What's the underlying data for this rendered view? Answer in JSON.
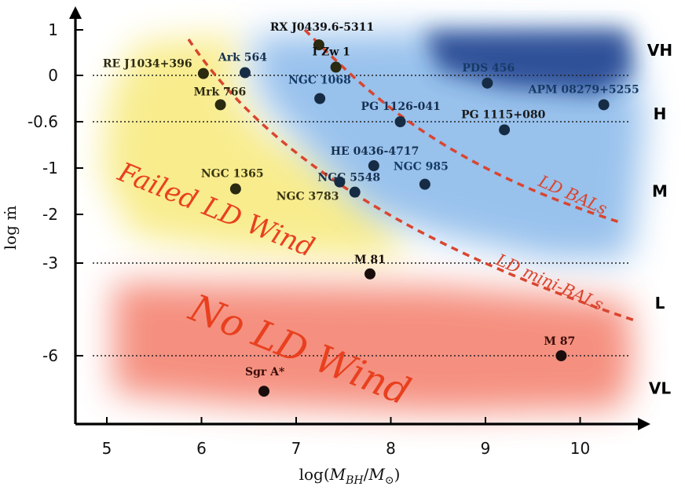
{
  "chart_data": {
    "type": "scatter",
    "title": "",
    "xlabel": "log(M_BH/M_⊙)",
    "xlabel_parts": {
      "pre": "log(",
      "m": "M",
      "sub_bh": "BH",
      "slash": "/",
      "m2": "M",
      "sub_sun": "⊙",
      "post": ")"
    },
    "ylabel": "log ṁ",
    "xlim": [
      4.7,
      10.6
    ],
    "x_ticks": [
      "5",
      "6",
      "7",
      "8",
      "9",
      "10"
    ],
    "y_ticks": [
      "1",
      "0",
      "-0.6",
      "-1",
      "-2",
      "-3",
      "-6"
    ],
    "bands": [
      "VH",
      "H",
      "M",
      "L",
      "VL"
    ],
    "reference_lines": [
      "0",
      "-0.6",
      "-3",
      "-6"
    ],
    "regions": [
      "Failed LD Wind",
      "No LD Wind"
    ],
    "curves": [
      "LD BALs",
      "LD mini-BALs"
    ],
    "points": [
      {
        "name": "RX J0439.6-5311",
        "x": 7.24,
        "y_level": 0.67
      },
      {
        "name": "I Zw 1",
        "x": 7.42,
        "y_level": 0.18
      },
      {
        "name": "RE J1034+396",
        "x": 6.02,
        "y_level": 0.04
      },
      {
        "name": "Ark 564",
        "x": 6.46,
        "y_level": 0.06
      },
      {
        "name": "PDS 456",
        "x": 9.02,
        "y_level": -0.1
      },
      {
        "name": "APM 08279+5255",
        "x": 10.25,
        "y_level": -0.38
      },
      {
        "name": "NGC 1068",
        "x": 7.25,
        "y_level": -0.3
      },
      {
        "name": "Mrk 766",
        "x": 6.2,
        "y_level": -0.38
      },
      {
        "name": "PG 1126-041",
        "x": 8.1,
        "y_level": -0.6
      },
      {
        "name": "PG 1115+080",
        "x": 9.2,
        "y_level": -0.67
      },
      {
        "name": "HE 0436-4717",
        "x": 7.82,
        "y_level": -0.98
      },
      {
        "name": "NGC 5548",
        "x": 7.46,
        "y_level": -1.3
      },
      {
        "name": "NGC 3783",
        "x": 7.62,
        "y_level": -1.52
      },
      {
        "name": "NGC 985",
        "x": 8.36,
        "y_level": -1.35
      },
      {
        "name": "NGC 1365",
        "x": 6.36,
        "y_level": -1.45
      },
      {
        "name": "M 81",
        "x": 7.78,
        "y_level": -3.35
      },
      {
        "name": "M 87",
        "x": 9.8,
        "y_level": -6.0
      },
      {
        "name": "Sgr A*",
        "x": 6.66,
        "y_level": -7.15
      }
    ]
  },
  "colors": {
    "yellow_region": "#f7e97a",
    "blue_region": "#7fb2e8",
    "dark_blue_region": "#1f3d8a",
    "red_region": "#f26b55",
    "curve": "#d9452f",
    "region_text": "#e8401f",
    "point_fill": "#162c44",
    "point_dark": "#1a0e0c",
    "point_in_yellow": "#2a2a10"
  }
}
